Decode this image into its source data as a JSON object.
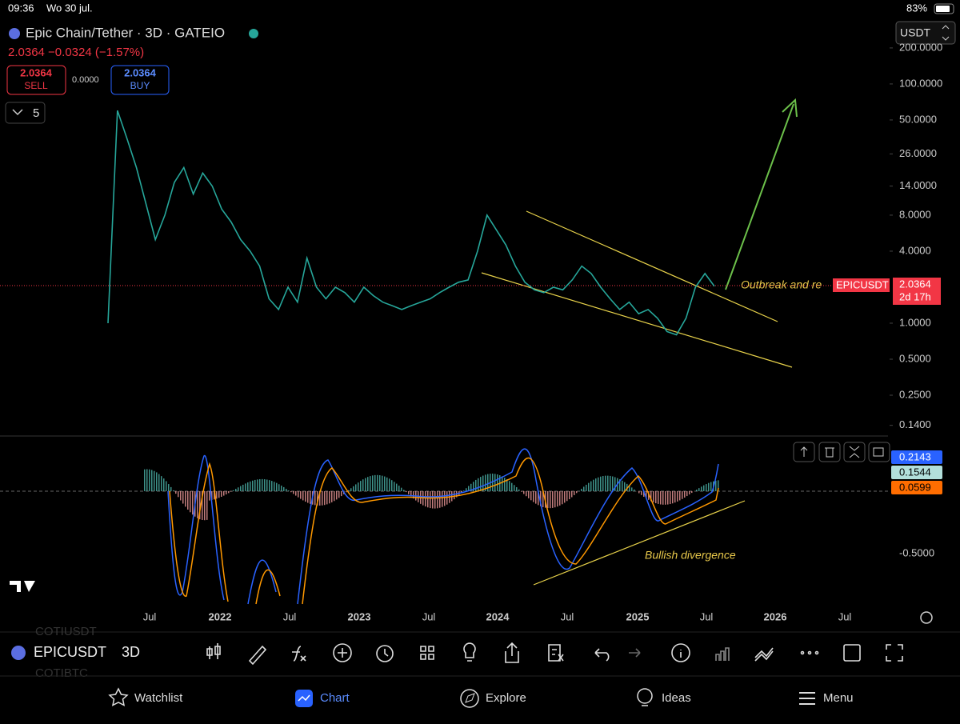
{
  "status_bar": {
    "time": "09:36",
    "date": "Wo 30 jul.",
    "battery": "83%"
  },
  "header": {
    "symbol_title": "Epic Chain/Tether · 3D · GATEIO",
    "quote": "2.0364 −0.0324 (−1.57%)",
    "sell_price": "2.0364",
    "sell_label": "SELL",
    "spread": "0.0000",
    "buy_price": "2.0364",
    "buy_label": "BUY",
    "indicator_count": "5",
    "currency": "USDT"
  },
  "chart_data": {
    "type": "line",
    "price_closes": [
      1.0,
      60,
      35,
      20,
      10,
      5,
      8,
      15,
      20,
      12,
      18,
      14,
      9,
      7,
      5,
      4,
      3,
      1.6,
      1.3,
      2,
      1.5,
      3.5,
      2,
      1.6,
      2,
      1.8,
      1.5,
      2,
      1.7,
      1.5,
      1.4,
      1.3,
      1.4,
      1.5,
      1.6,
      1.8,
      2.0,
      2.2,
      2.3,
      4,
      8,
      6,
      4.5,
      3,
      2.2,
      1.9,
      1.8,
      2,
      1.9,
      2.3,
      3,
      2.6,
      2.0,
      1.6,
      1.3,
      1.5,
      1.2,
      1.3,
      1.1,
      0.85,
      0.8,
      1.1,
      2.0,
      2.6,
      2.0364
    ],
    "color": "#26a69a",
    "log_scale": true,
    "ylim": [
      0.114,
      233
    ],
    "yticks": [
      {
        "value": 200,
        "label": "200.0000"
      },
      {
        "value": 100,
        "label": "100.0000"
      },
      {
        "value": 50,
        "label": "50.0000"
      },
      {
        "value": 26,
        "label": "26.0000"
      },
      {
        "value": 14,
        "label": "14.0000"
      },
      {
        "value": 8,
        "label": "8.0000"
      },
      {
        "value": 4,
        "label": "4.0000"
      },
      {
        "value": 1,
        "label": "1.0000"
      },
      {
        "value": 0.5,
        "label": "0.5000"
      },
      {
        "value": 0.25,
        "label": "0.2500"
      },
      {
        "value": 0.14,
        "label": "0.1400"
      }
    ],
    "xticks": [
      "Jul",
      "2022",
      "Jul",
      "2023",
      "Jul",
      "2024",
      "Jul",
      "2025",
      "Jul",
      "2026",
      "Jul"
    ],
    "price_tag": {
      "symbol": "EPICUSDT",
      "price": "2.0364",
      "countdown": "2d 17h"
    },
    "annotations": [
      "Outbreak and re",
      "Bullish divergence"
    ],
    "macd_labels": {
      "macd": "0.2143",
      "histogram": "0.1544",
      "signal": "0.0599",
      "axis": "-0.5000"
    }
  },
  "toolbar": {
    "symbol": "EPICUSDT",
    "interval": "3D",
    "ghost_1": "COTIUSDT",
    "ghost_2": "COTIBTC"
  },
  "nav": [
    "Watchlist",
    "Chart",
    "Explore",
    "Ideas",
    "Menu"
  ]
}
